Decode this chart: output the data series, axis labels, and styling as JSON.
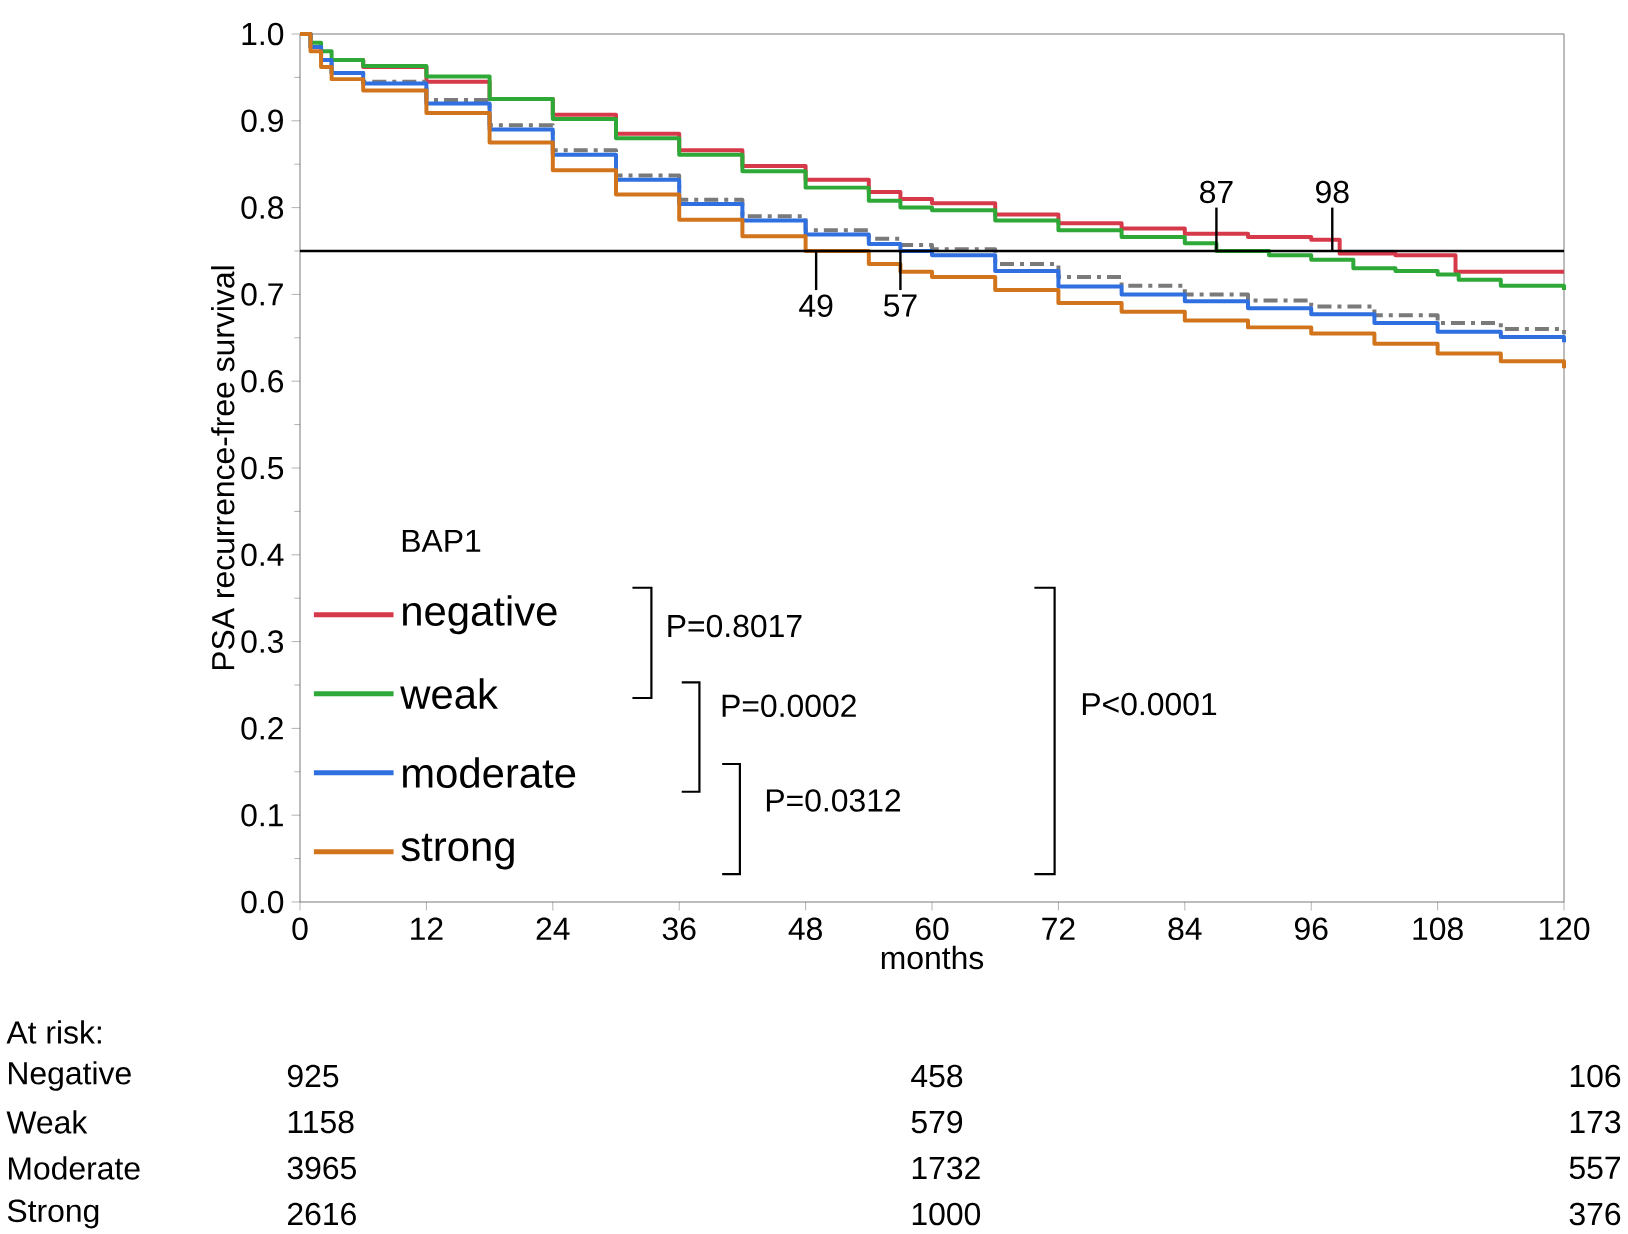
{
  "chart_data": {
    "type": "step",
    "xlabel": "months",
    "ylabel": "PSA recurrence-free survival",
    "legend_title": "BAP1",
    "legend": "bottom left",
    "xlim": [
      0,
      120
    ],
    "xticks": [
      0,
      12,
      24,
      36,
      48,
      60,
      72,
      84,
      96,
      108,
      120
    ],
    "ylim": [
      0,
      1
    ],
    "yticks": [
      {
        "value": 0,
        "label": "0.0"
      },
      0.1,
      0.2,
      0.3,
      0.4,
      0.5,
      0.6,
      0.7,
      0.8,
      0.9,
      {
        "value": 1,
        "label": "1.0"
      }
    ],
    "series": [
      {
        "name": "negative",
        "color": "#d63a4a",
        "x": [
          3,
          6,
          12,
          18,
          24,
          30,
          36,
          42,
          48,
          54,
          57,
          60,
          66,
          72,
          78,
          84,
          90,
          96,
          98.7,
          104,
          109.7,
          114,
          120
        ],
        "values": [
          0.97,
          0.962,
          0.945,
          0.925,
          0.907,
          0.885,
          0.866,
          0.848,
          0.832,
          0.818,
          0.81,
          0.805,
          0.792,
          0.782,
          0.776,
          0.77,
          0.766,
          0.763,
          0.747,
          0.745,
          0.726,
          0.726,
          0.726
        ]
      },
      {
        "name": "weak",
        "color": "#2ea836",
        "x": [
          0,
          1,
          2,
          3,
          6,
          12,
          18,
          24,
          30,
          36,
          42,
          48,
          54,
          57,
          60,
          66,
          72,
          78,
          84,
          87,
          92,
          96,
          100,
          104,
          108,
          110,
          114,
          120
        ],
        "values": [
          1,
          0.99,
          0.98,
          0.97,
          0.963,
          0.951,
          0.925,
          0.902,
          0.88,
          0.861,
          0.842,
          0.823,
          0.808,
          0.8,
          0.797,
          0.785,
          0.774,
          0.766,
          0.759,
          0.75,
          0.745,
          0.74,
          0.73,
          0.727,
          0.723,
          0.717,
          0.71,
          0.705
        ]
      },
      {
        "color": "#7a7a7a",
        "line_style": "dashed",
        "x": [
          0,
          1,
          2,
          3,
          6,
          12,
          18,
          24,
          30,
          36,
          42,
          48,
          54,
          57,
          60,
          66,
          72,
          78,
          84,
          90,
          96,
          102,
          108,
          114,
          120
        ],
        "values": [
          1,
          0.985,
          0.97,
          0.955,
          0.945,
          0.924,
          0.895,
          0.866,
          0.837,
          0.809,
          0.79,
          0.774,
          0.764,
          0.757,
          0.752,
          0.735,
          0.72,
          0.71,
          0.7,
          0.693,
          0.686,
          0.676,
          0.667,
          0.66,
          0.654
        ]
      },
      {
        "name": "moderate",
        "color": "#2f6fe0",
        "x": [
          0,
          1,
          2,
          3,
          6,
          12,
          18,
          24,
          30,
          36,
          42,
          48,
          54,
          57,
          60,
          66,
          72,
          78,
          84,
          90,
          96,
          102,
          108,
          114,
          120
        ],
        "values": [
          1,
          0.985,
          0.97,
          0.955,
          0.943,
          0.92,
          0.89,
          0.861,
          0.832,
          0.804,
          0.785,
          0.769,
          0.758,
          0.75,
          0.745,
          0.727,
          0.709,
          0.7,
          0.692,
          0.684,
          0.677,
          0.667,
          0.657,
          0.651,
          0.645
        ]
      },
      {
        "name": "strong",
        "color": "#d2741c",
        "x": [
          0,
          1,
          2,
          3,
          6,
          12,
          18,
          24,
          30,
          36,
          42,
          48,
          54,
          57,
          60,
          66,
          72,
          78,
          84,
          90,
          96,
          102,
          108,
          114,
          120
        ],
        "values": [
          1,
          0.98,
          0.962,
          0.948,
          0.935,
          0.909,
          0.875,
          0.843,
          0.815,
          0.786,
          0.767,
          0.75,
          0.735,
          0.726,
          0.72,
          0.705,
          0.69,
          0.68,
          0.67,
          0.662,
          0.655,
          0.643,
          0.632,
          0.623,
          0.615
        ]
      }
    ],
    "ref_lines": [
      {
        "axis": "y",
        "value": 0.75,
        "color": "#000000"
      }
    ],
    "annotations": [
      {
        "text": "49",
        "x": 49,
        "y": 0.75
      },
      {
        "text": "57",
        "x": 57,
        "y": 0.75
      },
      {
        "text": "87",
        "x": 87,
        "y": 0.75
      },
      {
        "text": "98",
        "x": 98,
        "y": 0.75
      },
      "P=0.8017",
      "P=0.0002",
      "P=0.0312",
      "P<0.0001",
      "At risk:",
      "Negative",
      "925",
      "458",
      "106",
      "Weak",
      "1158",
      "579",
      "173",
      "Moderate",
      "3965",
      "1732",
      "557",
      "Strong",
      "2616",
      "1000",
      "376"
    ]
  }
}
